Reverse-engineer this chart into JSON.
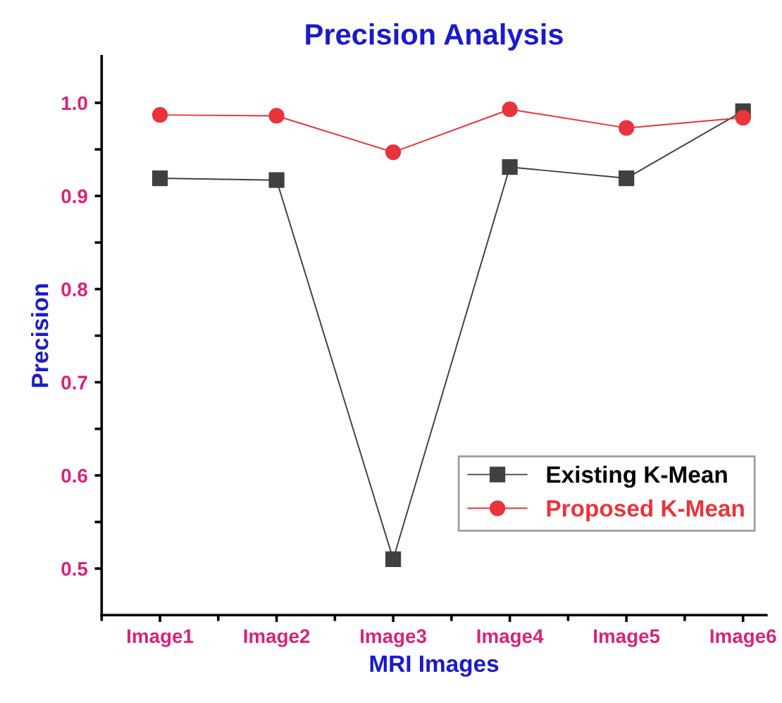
{
  "chart_data": {
    "type": "line",
    "title": "Precision Analysis",
    "xlabel": "MRI Images",
    "ylabel": "Precision",
    "categories": [
      "Image1",
      "Image2",
      "Image3",
      "Image4",
      "Image5",
      "Image6"
    ],
    "series": [
      {
        "name": "Existing K-Mean",
        "color": "#404040",
        "values": [
          0.919,
          0.917,
          0.51,
          0.931,
          0.919,
          0.991
        ],
        "marker": "square"
      },
      {
        "name": "Proposed K-Mean",
        "color": "#e8343a",
        "values": [
          0.987,
          0.986,
          0.947,
          0.993,
          0.973,
          0.984
        ],
        "marker": "circle"
      }
    ],
    "ylim": [
      0.45,
      1.05
    ],
    "yticks": [
      {
        "value": 0.5,
        "label": "0.5"
      },
      {
        "value": 0.55,
        "label": null
      },
      {
        "value": 0.6,
        "label": "0.6"
      },
      {
        "value": 0.65,
        "label": null
      },
      {
        "value": 0.7,
        "label": "0.7"
      },
      {
        "value": 0.75,
        "label": null
      },
      {
        "value": 0.8,
        "label": "0.8"
      },
      {
        "value": 0.85,
        "label": null
      },
      {
        "value": 0.9,
        "label": "0.9"
      },
      {
        "value": 0.95,
        "label": null
      },
      {
        "value": 1.0,
        "label": "1.0"
      }
    ],
    "grid": false,
    "legend": "bottom right",
    "line_style": "solid"
  }
}
